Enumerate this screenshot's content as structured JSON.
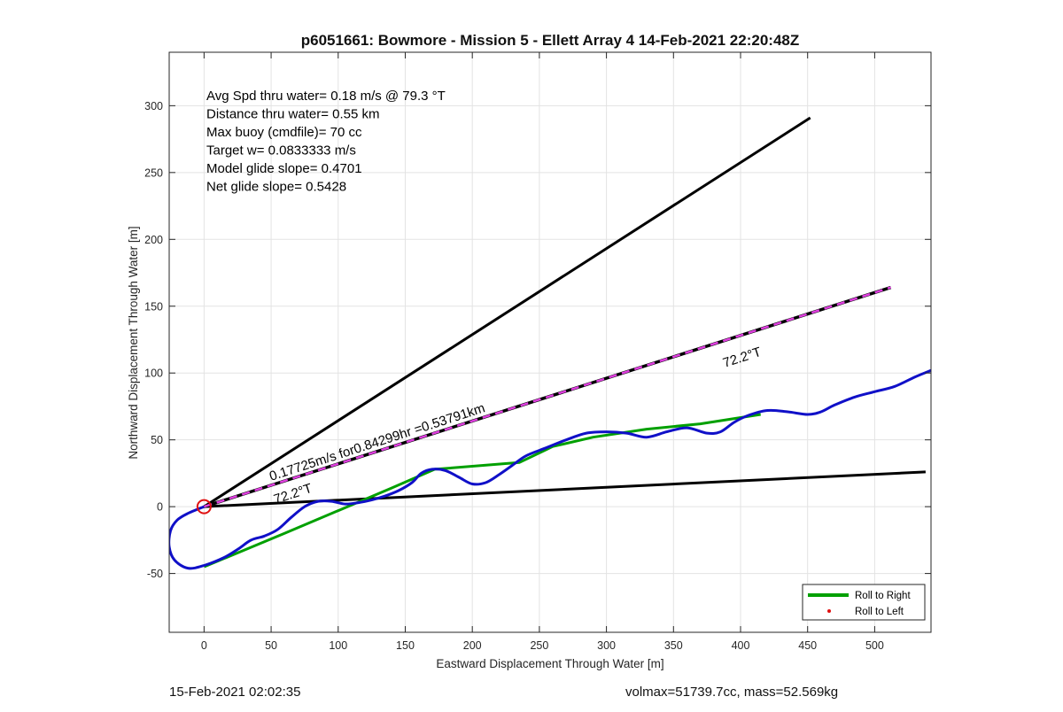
{
  "chart_data": {
    "type": "line",
    "title": "p6051661: Bowmore - Mission 5 - Ellett Array 4 14-Feb-2021 22:20:48Z",
    "xlabel": "Eastward Displacement Through Water [m]",
    "ylabel": "Northward Displacement Through Water [m]",
    "xlim": [
      -26,
      542
    ],
    "ylim": [
      -94,
      340
    ],
    "xticks": [
      0,
      50,
      100,
      150,
      200,
      250,
      300,
      350,
      400,
      450,
      500
    ],
    "yticks": [
      -50,
      0,
      50,
      100,
      150,
      200,
      250,
      300
    ],
    "grid": true,
    "legend_position": "bottom-right",
    "legend": [
      {
        "label": "Roll to Right",
        "color": "#00a000",
        "style": "line"
      },
      {
        "label": "Roll to Left",
        "color": "#e01010",
        "style": "point"
      }
    ],
    "info_lines": [
      "Avg Spd thru water=  0.18 m/s @  79.3 °T",
      "Distance thru water=  0.55 km",
      "Max buoy (cmdfile)= 70 cc",
      "Target w= 0.0833333 m/s",
      "Model glide slope= 0.4701",
      "Net glide slope= 0.5428"
    ],
    "annotations": {
      "speed_label": "0.17725m/s for0.84299hr =0.53791km",
      "heading_label_upper": "72.2°T",
      "heading_label_lower": "72.2°T"
    },
    "series": [
      {
        "name": "glider track",
        "color": "#1010c8",
        "points": [
          [
            0,
            0
          ],
          [
            -12,
            -5
          ],
          [
            -20,
            -10
          ],
          [
            -25,
            -18
          ],
          [
            -26,
            -30
          ],
          [
            -22,
            -40
          ],
          [
            -12,
            -46
          ],
          [
            0,
            -44
          ],
          [
            15,
            -38
          ],
          [
            25,
            -32
          ],
          [
            35,
            -25
          ],
          [
            45,
            -22
          ],
          [
            55,
            -17
          ],
          [
            65,
            -8
          ],
          [
            75,
            0
          ],
          [
            85,
            4
          ],
          [
            95,
            4
          ],
          [
            105,
            2
          ],
          [
            115,
            3
          ],
          [
            125,
            5
          ],
          [
            135,
            8
          ],
          [
            145,
            12
          ],
          [
            155,
            18
          ],
          [
            162,
            25
          ],
          [
            170,
            28
          ],
          [
            180,
            27
          ],
          [
            190,
            22
          ],
          [
            200,
            17
          ],
          [
            210,
            18
          ],
          [
            220,
            24
          ],
          [
            230,
            31
          ],
          [
            240,
            38
          ],
          [
            255,
            44
          ],
          [
            270,
            50
          ],
          [
            285,
            55
          ],
          [
            300,
            56
          ],
          [
            315,
            55
          ],
          [
            330,
            52
          ],
          [
            345,
            56
          ],
          [
            360,
            59
          ],
          [
            375,
            55
          ],
          [
            385,
            56
          ],
          [
            395,
            63
          ],
          [
            405,
            68
          ],
          [
            420,
            72
          ],
          [
            435,
            71
          ],
          [
            450,
            69
          ],
          [
            460,
            71
          ],
          [
            470,
            76
          ],
          [
            485,
            82
          ],
          [
            500,
            86
          ],
          [
            515,
            90
          ],
          [
            530,
            97
          ],
          [
            542,
            102
          ]
        ]
      },
      {
        "name": "Roll to Right",
        "color": "#00a000",
        "points": [
          [
            0,
            -45
          ],
          [
            60,
            -20
          ],
          [
            140,
            14
          ],
          [
            172,
            28
          ],
          [
            235,
            33
          ],
          [
            260,
            45
          ],
          [
            290,
            52
          ],
          [
            330,
            58
          ],
          [
            370,
            62
          ],
          [
            415,
            69
          ]
        ]
      },
      {
        "name": "heading line upper",
        "color": "#000000",
        "points": [
          [
            0,
            0
          ],
          [
            452,
            291
          ]
        ]
      },
      {
        "name": "heading line lower",
        "color": "#000000",
        "points": [
          [
            0,
            0
          ],
          [
            538,
            26
          ]
        ]
      },
      {
        "name": "net track",
        "color": "#000000",
        "dash_color": "#e040e0",
        "points": [
          [
            0,
            0
          ],
          [
            512,
            164
          ]
        ]
      }
    ],
    "start_marker": {
      "x": 0,
      "y": 0,
      "color": "#e01010"
    }
  },
  "footer": {
    "timestamp": "15-Feb-2021 02:02:35",
    "stats": "volmax=51739.7cc, mass=52.569kg"
  }
}
